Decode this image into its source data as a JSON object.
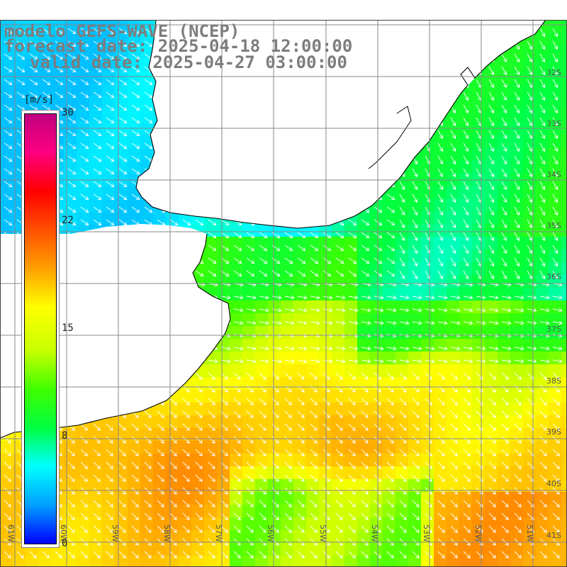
{
  "title": {
    "line1": "modelo GEFS-WAVE (NCEP)",
    "line2": "forecast date: 2025-04-18 12:00:00",
    "line3": "valid date: 2025-04-27 03:00:00"
  },
  "colorbar": {
    "unit": "[m/s]",
    "ticks": [
      "30",
      "22",
      "15",
      "8",
      "0"
    ],
    "colors": [
      "#0000ff",
      "#00a0ff",
      "#00ffff",
      "#00ff40",
      "#40ff00",
      "#c8ff00",
      "#ffff00",
      "#ffa000",
      "#ff5000",
      "#ff0000",
      "#ff0080",
      "#c00080"
    ]
  },
  "lat_labels": [
    "32S",
    "33S",
    "34S",
    "35S",
    "36S",
    "37S",
    "38S",
    "39S",
    "40S",
    "41S"
  ],
  "lon_labels": [
    "61W",
    "60W",
    "59W",
    "58W",
    "57W",
    "56W",
    "55W",
    "54W",
    "53W",
    "52W",
    "51W"
  ],
  "map_colors": {
    "land": "#ffffff",
    "grid": "#888888",
    "coast": "#000000",
    "arrow": "#ffffff"
  },
  "chart_data": {
    "type": "heatmap",
    "title": "modelo GEFS-WAVE (NCEP)",
    "variable_unit": "m/s",
    "scale_range": [
      0,
      30
    ],
    "lon_range_W": [
      61,
      51
    ],
    "lat_range_S": [
      31,
      41
    ],
    "grid": true
  }
}
